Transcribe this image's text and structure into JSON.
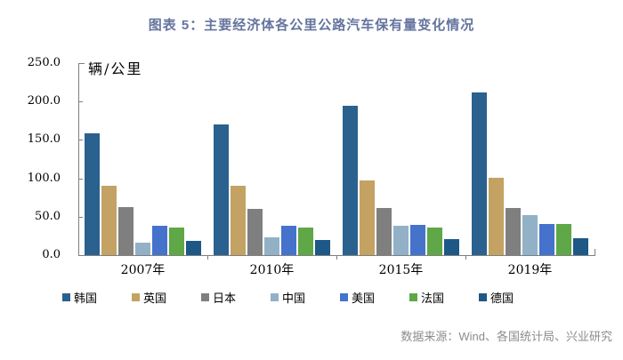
{
  "title": "图表 5：主要经济体各公里公路汽车保有量变化情况",
  "source": "数据来源：Wind、各国统计局、兴业研究",
  "colors": {
    "title": "#64749E",
    "source": "#8C8C8C",
    "axis": "#7F7F7F"
  },
  "chart_data": {
    "type": "bar",
    "title": "图表 5：主要经济体各公里公路汽车保有量变化情况",
    "unit_label": "辆/公里",
    "xlabel": "",
    "ylabel": "辆/公里",
    "categories": [
      "2007年",
      "2010年",
      "2015年",
      "2019年"
    ],
    "series": [
      {
        "name": "韩国",
        "color": "#2A618E",
        "values": [
          159,
          170,
          195,
          212
        ]
      },
      {
        "name": "英国",
        "color": "#C3A263",
        "values": [
          90,
          90,
          97,
          101
        ]
      },
      {
        "name": "日本",
        "color": "#7F7F7F",
        "values": [
          63,
          60,
          61,
          61
        ]
      },
      {
        "name": "中国",
        "color": "#92B1C7",
        "values": [
          16,
          23,
          38,
          52
        ]
      },
      {
        "name": "美国",
        "color": "#4573CB",
        "values": [
          38,
          38,
          39,
          41
        ]
      },
      {
        "name": "法国",
        "color": "#5FA747",
        "values": [
          36,
          36,
          36,
          41
        ]
      },
      {
        "name": "德国",
        "color": "#1D5886",
        "values": [
          19,
          20,
          21,
          22
        ]
      }
    ],
    "ylim": [
      0,
      250
    ],
    "y_ticks": [
      "0.0",
      "50.0",
      "100.0",
      "150.0",
      "200.0",
      "250.0"
    ],
    "grid": false,
    "legend_position": "bottom"
  }
}
